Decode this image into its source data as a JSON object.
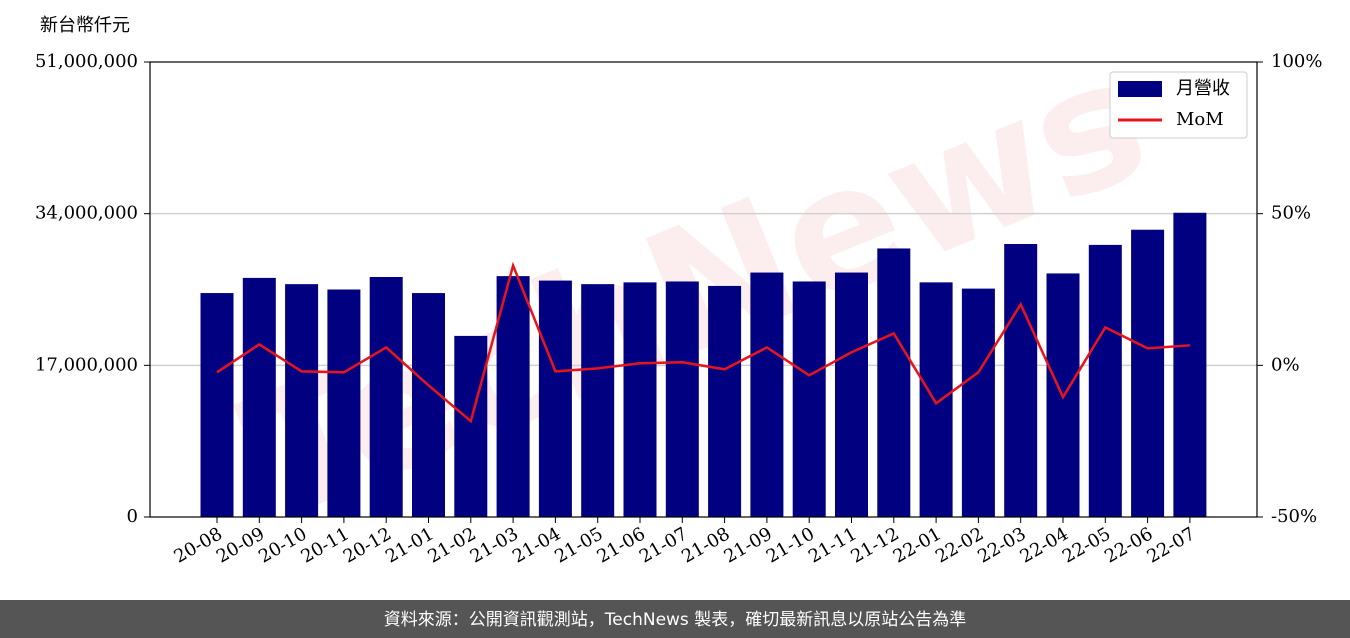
{
  "chart_data": {
    "type": "bar",
    "y_label": "新台幣仟元",
    "watermark": "TechNews",
    "categories": [
      "20-08",
      "20-09",
      "20-10",
      "20-11",
      "20-12",
      "21-01",
      "21-02",
      "21-03",
      "21-04",
      "21-05",
      "21-06",
      "21-07",
      "21-08",
      "21-09",
      "21-10",
      "21-11",
      "21-12",
      "22-01",
      "22-02",
      "22-03",
      "22-04",
      "22-05",
      "22-06",
      "22-07"
    ],
    "series": [
      {
        "name": "月營收",
        "type": "bar",
        "color": "#000080",
        "values": [
          25100000,
          26800000,
          26100000,
          25500000,
          26900000,
          25100000,
          20300000,
          27000000,
          26500000,
          26100000,
          26300000,
          26400000,
          25900000,
          27400000,
          26400000,
          27400000,
          30100000,
          26300000,
          25600000,
          30600000,
          27300000,
          30500000,
          32200000,
          34100000
        ]
      },
      {
        "name": "MoM",
        "type": "line",
        "axis": "y2",
        "color": "#e8141c",
        "values": [
          -2.3,
          6.9,
          -2.0,
          -2.3,
          5.9,
          -6.6,
          -18.4,
          32.9,
          -2.0,
          -1.0,
          0.7,
          1.0,
          -1.3,
          5.9,
          -3.3,
          4.3,
          10.5,
          -12.5,
          -2.3,
          20.1,
          -10.5,
          12.5,
          5.6,
          6.6
        ]
      }
    ],
    "ylim": [
      0,
      51000000
    ],
    "yticks": [
      {
        "value": 0,
        "label": "0"
      },
      {
        "value": 17000000,
        "label": "17,000,000"
      },
      {
        "value": 34000000,
        "label": "34,000,000"
      },
      {
        "value": 51000000,
        "label": "51,000,000"
      }
    ],
    "y2lim": [
      -50,
      100
    ],
    "y2ticks": [
      {
        "value": -50,
        "label": "-50%"
      },
      {
        "value": 0,
        "label": "0%"
      },
      {
        "value": 50,
        "label": "50%"
      },
      {
        "value": 100,
        "label": "100%"
      }
    ],
    "grid": true,
    "legend": "upper right"
  },
  "footer": "資料來源：公開資訊觀測站，TechNews 製表，確切最新訊息以原站公告為準"
}
